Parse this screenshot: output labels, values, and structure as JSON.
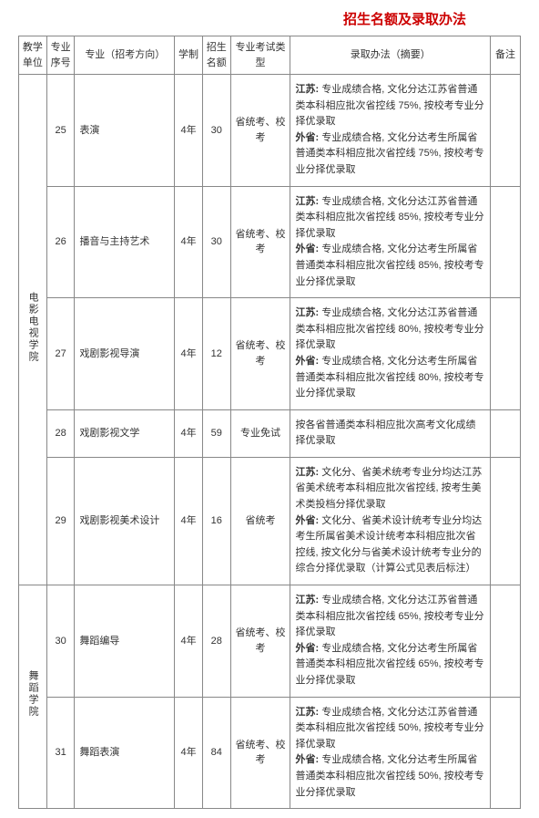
{
  "title": "招生名额及录取办法",
  "headers": {
    "unit": "教学单位",
    "seq": "专业序号",
    "major": "专业（招考方向）",
    "year": "学制",
    "quota": "招生名额",
    "examtype": "专业考试类型",
    "method": "录取办法（摘要）",
    "note": "备注"
  },
  "units": [
    {
      "name": "电影电视学院",
      "rows": [
        {
          "seq": "25",
          "major": "表演",
          "year": "4年",
          "quota": "30",
          "examtype": "省统考、校考",
          "method_js_label": "江苏: ",
          "method_js": "专业成绩合格, 文化分达江苏省普通类本科相应批次省控线 75%, 按校考专业分择优录取",
          "method_wp_label": "外省: ",
          "method_wp": "专业成绩合格, 文化分达考生所属省普通类本科相应批次省控线 75%, 按校考专业分择优录取"
        },
        {
          "seq": "26",
          "major": "播音与主持艺术",
          "year": "4年",
          "quota": "30",
          "examtype": "省统考、校考",
          "method_js_label": "江苏: ",
          "method_js": "专业成绩合格, 文化分达江苏省普通类本科相应批次省控线 85%, 按校考专业分择优录取",
          "method_wp_label": "外省: ",
          "method_wp": "专业成绩合格, 文化分达考生所属省普通类本科相应批次省控线 85%, 按校考专业分择优录取"
        },
        {
          "seq": "27",
          "major": "戏剧影视导演",
          "year": "4年",
          "quota": "12",
          "examtype": "省统考、校考",
          "method_js_label": "江苏: ",
          "method_js": "专业成绩合格, 文化分达江苏省普通类本科相应批次省控线 80%, 按校考专业分择优录取",
          "method_wp_label": "外省: ",
          "method_wp": "专业成绩合格, 文化分达考生所属省普通类本科相应批次省控线 80%, 按校考专业分择优录取"
        },
        {
          "seq": "28",
          "major": "戏剧影视文学",
          "year": "4年",
          "quota": "59",
          "examtype": "专业免试",
          "method_single": "按各省普通类本科相应批次高考文化成绩择优录取"
        },
        {
          "seq": "29",
          "major": "戏剧影视美术设计",
          "year": "4年",
          "quota": "16",
          "examtype": "省统考",
          "method_js_label": "江苏: ",
          "method_js": "文化分、省美术统考专业分均达江苏省美术统考本科相应批次省控线, 按考生美术类投档分择优录取",
          "method_wp_label": "外省: ",
          "method_wp": "文化分、省美术设计统考专业分均达考生所属省美术设计统考本科相应批次省控线, 按文化分与省美术设计统考专业分的综合分择优录取（计算公式见表后标注）"
        }
      ]
    },
    {
      "name": "舞蹈学院",
      "rows": [
        {
          "seq": "30",
          "major": "舞蹈编导",
          "year": "4年",
          "quota": "28",
          "examtype": "省统考、校考",
          "method_js_label": "江苏: ",
          "method_js": "专业成绩合格, 文化分达江苏省普通类本科相应批次省控线 65%, 按校考专业分择优录取",
          "method_wp_label": "外省: ",
          "method_wp": "专业成绩合格, 文化分达考生所属省普通类本科相应批次省控线 65%, 按校考专业分择优录取"
        },
        {
          "seq": "31",
          "major": "舞蹈表演",
          "year": "4年",
          "quota": "84",
          "examtype": "省统考、校考",
          "method_js_label": "江苏: ",
          "method_js": "专业成绩合格, 文化分达江苏省普通类本科相应批次省控线 50%, 按校考专业分择优录取",
          "method_wp_label": "外省: ",
          "method_wp": "专业成绩合格, 文化分达考生所属省普通类本科相应批次省控线 50%, 按校考专业分择优录取"
        }
      ]
    }
  ]
}
